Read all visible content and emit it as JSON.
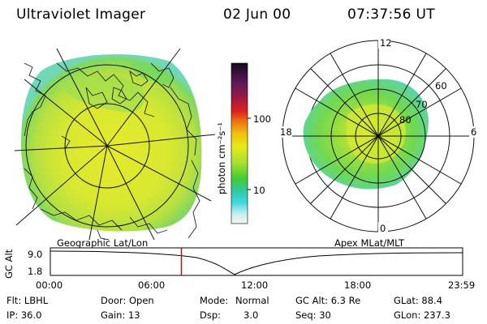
{
  "header": {
    "title": "Ultraviolet Imager",
    "date": "02 Jun 00",
    "time": "07:37:56 UT"
  },
  "colorbar": {
    "label": "photon cm⁻²s⁻¹",
    "ticks": [
      "100",
      "10"
    ],
    "colors": [
      "#1a0a2a",
      "#6a1a5a",
      "#d0103a",
      "#f08a10",
      "#e8e818",
      "#50d030",
      "#40d8d8",
      "#e8e8e8"
    ]
  },
  "left_map": {
    "caption": "Geographic Lat/Lon"
  },
  "right_map": {
    "caption": "Apex MLat/MLT",
    "mlt_labels": {
      "top": "12",
      "left": "18",
      "right": "6",
      "bottom": "0"
    },
    "lat_labels": [
      "60",
      "70",
      "80"
    ]
  },
  "timeline": {
    "ylabel": "GC Alt",
    "ticks_y": [
      "9.0",
      "1.8"
    ],
    "ticks_x": [
      "00:00",
      "06:00",
      "12:00",
      "18:00",
      "23:59"
    ],
    "current_time_hours": 7.63
  },
  "info": {
    "flt": "Flt: LBHL",
    "ip": "IP: 36.0",
    "door": "Door: Open",
    "gain": "Gain: 13",
    "mode_label": "Mode:",
    "mode_value": "Normal",
    "dsp_label": "Dsp:",
    "dsp_value": "3.0",
    "gc_alt": "GC Alt: 6.3 Re",
    "seq": "Seq: 30",
    "glat": "GLat: 88.4",
    "glon": "GLon: 237.3"
  }
}
